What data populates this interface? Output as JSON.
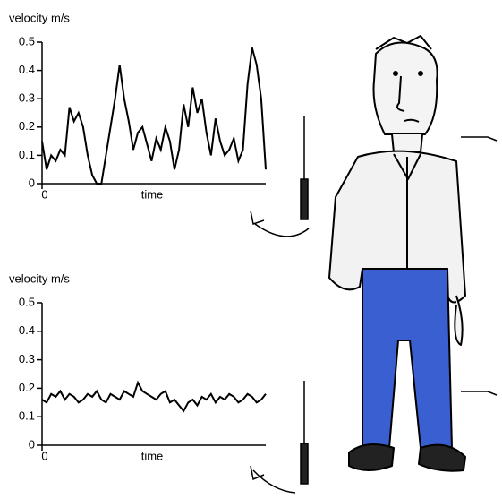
{
  "chart_data": [
    {
      "type": "line",
      "ylabel": "velocity m/s",
      "xlabel": "time",
      "color": "#000000",
      "x": [
        0,
        1,
        2,
        3,
        4,
        5,
        6,
        7,
        8,
        9,
        10,
        11,
        12,
        13,
        14,
        15,
        16,
        17,
        18,
        19,
        20,
        21,
        22,
        23,
        24,
        25,
        26,
        27,
        28,
        29,
        30,
        31,
        32,
        33,
        34,
        35,
        36,
        37,
        38,
        39,
        40,
        41,
        42,
        43,
        44,
        45,
        46,
        47,
        48,
        49
      ],
      "values": [
        0.15,
        0.05,
        0.1,
        0.08,
        0.12,
        0.1,
        0.27,
        0.22,
        0.25,
        0.2,
        0.1,
        0.03,
        0,
        0,
        0.1,
        0.2,
        0.3,
        0.42,
        0.3,
        0.22,
        0.12,
        0.18,
        0.2,
        0.14,
        0.08,
        0.16,
        0.12,
        0.2,
        0.15,
        0.05,
        0.12,
        0.28,
        0.2,
        0.34,
        0.25,
        0.3,
        0.18,
        0.1,
        0.23,
        0.15,
        0.1,
        0.12,
        0.16,
        0.08,
        0.12,
        0.35,
        0.48,
        0.42,
        0.3,
        0.05
      ],
      "xlim": [
        0,
        49
      ],
      "ylim": [
        0,
        0.5
      ],
      "xticks": [
        0
      ],
      "yticks": [
        0,
        0.1,
        0.2,
        0.3,
        0.4,
        0.5
      ]
    },
    {
      "type": "line",
      "ylabel": "velocity m/s",
      "xlabel": "time",
      "color": "#000000",
      "x": [
        0,
        1,
        2,
        3,
        4,
        5,
        6,
        7,
        8,
        9,
        10,
        11,
        12,
        13,
        14,
        15,
        16,
        17,
        18,
        19,
        20,
        21,
        22,
        23,
        24,
        25,
        26,
        27,
        28,
        29,
        30,
        31,
        32,
        33,
        34,
        35,
        36,
        37,
        38,
        39,
        40,
        41,
        42,
        43,
        44,
        45,
        46,
        47,
        48,
        49
      ],
      "values": [
        0.16,
        0.15,
        0.18,
        0.17,
        0.19,
        0.16,
        0.18,
        0.17,
        0.15,
        0.16,
        0.18,
        0.17,
        0.19,
        0.16,
        0.15,
        0.18,
        0.17,
        0.16,
        0.19,
        0.18,
        0.17,
        0.22,
        0.19,
        0.18,
        0.17,
        0.16,
        0.18,
        0.19,
        0.15,
        0.16,
        0.14,
        0.12,
        0.15,
        0.16,
        0.14,
        0.17,
        0.16,
        0.18,
        0.15,
        0.17,
        0.16,
        0.18,
        0.17,
        0.15,
        0.16,
        0.18,
        0.17,
        0.15,
        0.16,
        0.18
      ],
      "xlim": [
        0,
        49
      ],
      "ylim": [
        0,
        0.5
      ],
      "xticks": [
        0
      ],
      "yticks": [
        0,
        0.1,
        0.2,
        0.3,
        0.4,
        0.5
      ]
    }
  ]
}
